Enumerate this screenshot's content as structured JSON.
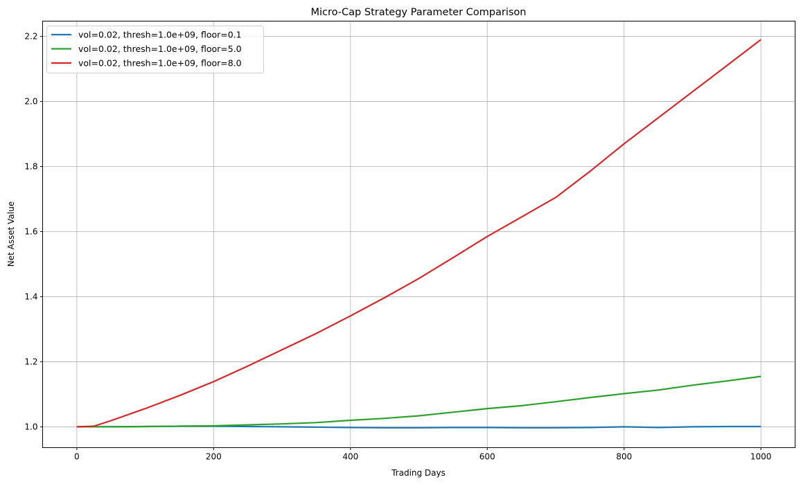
{
  "chart_data": {
    "type": "line",
    "title": "Micro-Cap Strategy Parameter Comparison",
    "xlabel": "Trading Days",
    "ylabel": "Net Asset Value",
    "xlim": [
      -50,
      1050
    ],
    "ylim": [
      0.936,
      2.247
    ],
    "xticks": [
      0,
      200,
      400,
      600,
      800,
      1000
    ],
    "yticks": [
      1.0,
      1.2,
      1.4,
      1.6,
      1.8,
      2.0,
      2.2
    ],
    "grid": true,
    "legend_position": "top-left",
    "x": [
      0,
      25,
      50,
      100,
      150,
      200,
      250,
      300,
      350,
      400,
      450,
      500,
      550,
      600,
      650,
      700,
      750,
      800,
      850,
      900,
      950,
      1000
    ],
    "series": [
      {
        "name": "vol=0.02, thresh=1.0e+09, floor=0.1",
        "color": "#1f77b4",
        "values": [
          1.0,
          1.0,
          1.0,
          1.001,
          1.002,
          1.002,
          1.001,
          1.0,
          0.999,
          0.998,
          0.997,
          0.997,
          0.998,
          0.998,
          0.997,
          0.997,
          0.998,
          1.0,
          0.998,
          1.0,
          1.001,
          1.001
        ]
      },
      {
        "name": "vol=0.02, thresh=1.0e+09, floor=5.0",
        "color": "#2ca02c",
        "values": [
          1.0,
          1.0,
          1.0,
          1.001,
          1.002,
          1.003,
          1.006,
          1.009,
          1.013,
          1.02,
          1.026,
          1.034,
          1.045,
          1.056,
          1.065,
          1.077,
          1.09,
          1.102,
          1.113,
          1.128,
          1.141,
          1.155
        ]
      },
      {
        "name": "vol=0.02, thresh=1.0e+09, floor=8.0",
        "color": "#d62728",
        "values": [
          1.0,
          1.002,
          1.019,
          1.056,
          1.096,
          1.139,
          1.187,
          1.237,
          1.287,
          1.341,
          1.397,
          1.456,
          1.52,
          1.585,
          1.645,
          1.705,
          1.785,
          1.87,
          1.95,
          2.03,
          2.11,
          2.19
        ]
      }
    ]
  }
}
